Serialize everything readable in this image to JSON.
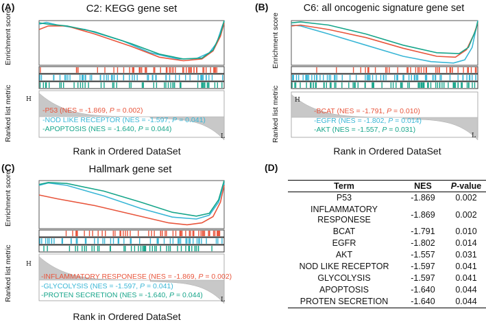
{
  "colors": {
    "p53": "#e8553c",
    "nod": "#39b6d6",
    "apop": "#16a58a",
    "bcat": "#e8553c",
    "egfr": "#39b6d6",
    "akt": "#16a58a",
    "infl": "#e8553c",
    "glyc": "#39b6d6",
    "prot": "#16a58a"
  },
  "common": {
    "ylabel_es": "Enrichment score",
    "ylabel_rank": "Ranked list metric",
    "xlabel": "Rank in Ordered DataSet",
    "h": "H",
    "l": "L"
  },
  "panelA": {
    "letter": "(A)",
    "title": "C2: KEGG gene set",
    "legend": [
      {
        "pre": "-P53 (NES = -1.869, ",
        "p": "P",
        "post": " = 0.002)"
      },
      {
        "pre": "-NOD LIKE RECEPTOR  (NES = -1.597, ",
        "p": "P",
        "post": " = 0.041)"
      },
      {
        "pre": "-APOPTOSIS (NES = -1.640, ",
        "p": "P",
        "post": " = 0.044)"
      }
    ]
  },
  "panelB": {
    "letter": "(B)",
    "title": "C6: all oncogenic signature gene set",
    "legend": [
      {
        "pre": "-BCAT (NES = -1.791, ",
        "p": "P",
        "post": " = 0.010)"
      },
      {
        "pre": "-EGFR (NES = -1.802, ",
        "p": "P",
        "post": " = 0.014)"
      },
      {
        "pre": "-AKT (NES = -1.557, ",
        "p": "P",
        "post": " = 0.031)"
      }
    ]
  },
  "panelC": {
    "letter": "(C)",
    "title": "Hallmark gene set",
    "legend": [
      {
        "pre": "-INFLAMMATORY  RESPONESE (NES = -1.869, ",
        "p": "P",
        "post": " = 0.002)"
      },
      {
        "pre": "-GLYCOLYSIS (NES = -1.597, ",
        "p": "P",
        "post": " = 0.041)"
      },
      {
        "pre": "-PROTEN  SECRETION  (NES = -1.640, ",
        "p": "P",
        "post": " = 0.044)"
      }
    ]
  },
  "panelD": {
    "letter": "(D)",
    "headers": {
      "term": "Term",
      "nes": "NES",
      "p": "P",
      "pv": "-value"
    },
    "rows": [
      {
        "term": "P53",
        "nes": "-1.869",
        "p": "0.002"
      },
      {
        "term": "INFLAMMATORY RESPONESE",
        "nes": "-1.869",
        "p": "0.002"
      },
      {
        "term": "BCAT",
        "nes": "-1.791",
        "p": "0.010"
      },
      {
        "term": "EGFR",
        "nes": "-1.802",
        "p": "0.014"
      },
      {
        "term": "AKT",
        "nes": "-1.557",
        "p": "0.031"
      },
      {
        "term": "NOD LIKE RECEPTOR",
        "nes": "-1.597",
        "p": "0.041"
      },
      {
        "term": "GLYCOLYSIS",
        "nes": "-1.597",
        "p": "0.041"
      },
      {
        "term": "APOPTOSIS",
        "nes": "-1.640",
        "p": "0.044"
      },
      {
        "term": "PROTEN SECRETION",
        "nes": "-1.640",
        "p": "0.044"
      }
    ]
  }
}
